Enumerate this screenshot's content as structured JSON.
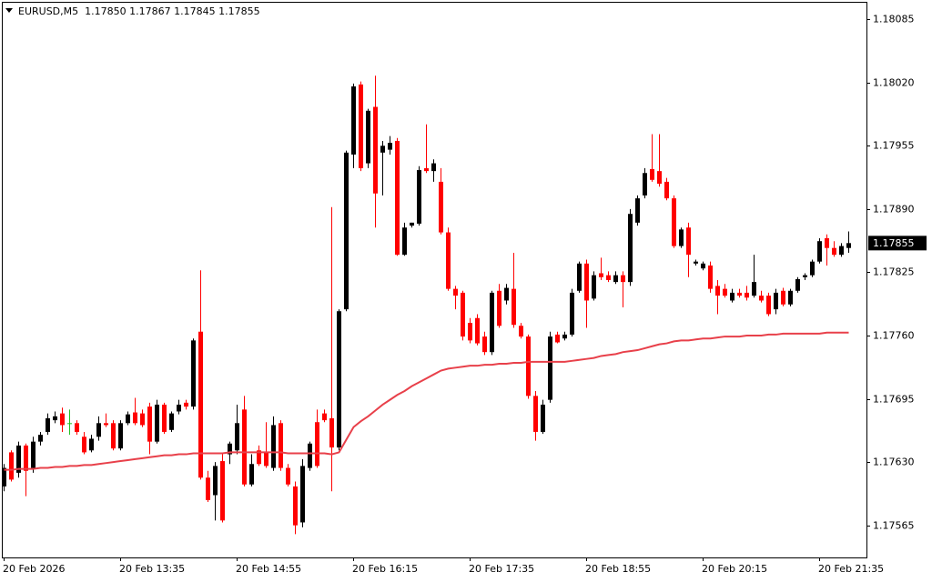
{
  "chart_data": {
    "type": "candlestick",
    "title": "EURUSD,M5  1.17850 1.17867 1.17845 1.17855",
    "categories": [
      "20 Feb 2026",
      null,
      null,
      null,
      null,
      null,
      null,
      null,
      null,
      null,
      null,
      null,
      null,
      null,
      null,
      null,
      "20 Feb 13:35",
      null,
      null,
      null,
      null,
      null,
      null,
      null,
      null,
      null,
      null,
      null,
      null,
      null,
      null,
      null,
      "20 Feb 14:55",
      null,
      null,
      null,
      null,
      null,
      null,
      null,
      null,
      null,
      null,
      null,
      null,
      null,
      null,
      null,
      "20 Feb 16:15",
      null,
      null,
      null,
      null,
      null,
      null,
      null,
      null,
      null,
      null,
      null,
      null,
      null,
      null,
      null,
      "20 Feb 17:35",
      null,
      null,
      null,
      null,
      null,
      null,
      null,
      null,
      null,
      null,
      null,
      null,
      null,
      null,
      null,
      "20 Feb 18:55",
      null,
      null,
      null,
      null,
      null,
      null,
      null,
      null,
      null,
      null,
      null,
      null,
      null,
      null,
      null,
      "20 Feb 20:15",
      null,
      null,
      null,
      null,
      null,
      null,
      null,
      null,
      null,
      null,
      null,
      null,
      null,
      null,
      null,
      "20 Feb 21:35",
      null,
      null,
      null,
      null
    ],
    "open": [
      1.17605,
      1.1764,
      1.17619,
      1.17647,
      1.17624,
      1.17651,
      1.17661,
      1.17673,
      1.1768,
      1.1767,
      1.1767,
      1.17656,
      1.17642,
      1.17656,
      1.1767,
      1.1767,
      1.17644,
      1.1767,
      1.17681,
      1.1768,
      1.17687,
      1.17651,
      1.17689,
      1.17663,
      1.17682,
      1.17691,
      1.17687,
      1.17764,
      1.17614,
      1.17596,
      1.17631,
      1.17638,
      1.17642,
      1.17684,
      1.17607,
      1.17642,
      1.1764,
      1.17624,
      1.1767,
      1.17624,
      1.17605,
      1.17568,
      1.17624,
      1.17671,
      1.1768,
      1.17675,
      1.17645,
      1.17787,
      1.17946,
      1.18018,
      1.17937,
      1.17995,
      1.17948,
      1.17951,
      1.1796,
      1.17843,
      1.17873,
      1.17875,
      1.17932,
      1.17929,
      1.17918,
      1.17866,
      1.17808,
      1.17804,
      1.17773,
      1.17778,
      1.17759,
      1.17743,
      1.17806,
      1.17796,
      1.17808,
      1.1777,
      1.17759,
      1.17698,
      1.17661,
      1.17694,
      1.17761,
      1.17757,
      1.17761,
      1.17806,
      1.17834,
      1.17798,
      1.17824,
      1.17822,
      1.17815,
      1.17822,
      1.17815,
      1.17876,
      1.17904,
      1.17931,
      1.17929,
      1.17918,
      1.17901,
      1.17852,
      1.17871,
      1.17834,
      1.17829,
      1.17832,
      1.17811,
      1.17808,
      1.17796,
      1.17804,
      1.17804,
      1.17801,
      1.17801,
      1.17801,
      1.17787,
      1.17806,
      1.17792,
      1.17806,
      1.1782,
      1.17822,
      1.17836,
      1.1786,
      1.1785,
      1.17843,
      1.1785
    ],
    "high": [
      1.17628,
      1.17642,
      1.17651,
      1.17649,
      1.17656,
      1.17661,
      1.1768,
      1.17682,
      1.17686,
      1.17684,
      1.17673,
      1.17661,
      1.17658,
      1.17677,
      1.1768,
      1.17673,
      1.17673,
      1.17682,
      1.17696,
      1.17684,
      1.17691,
      1.17694,
      1.17691,
      1.17682,
      1.17694,
      1.17694,
      1.17757,
      1.17827,
      1.17621,
      1.1763,
      1.17638,
      1.17651,
      1.17689,
      1.17698,
      1.17638,
      1.17647,
      1.17671,
      1.17677,
      1.17673,
      1.17628,
      1.1761,
      1.17633,
      1.17651,
      1.17684,
      1.17684,
      1.17892,
      1.17787,
      1.1795,
      1.18019,
      1.18021,
      1.17993,
      1.18027,
      1.1796,
      1.17965,
      1.17963,
      1.17876,
      1.17876,
      1.17934,
      1.17977,
      1.17941,
      1.17932,
      1.17871,
      1.17811,
      1.17806,
      1.17778,
      1.17782,
      1.17764,
      1.17806,
      1.17813,
      1.17813,
      1.17845,
      1.17773,
      1.17761,
      1.17703,
      1.17694,
      1.17764,
      1.17764,
      1.17764,
      1.17808,
      1.17836,
      1.17838,
      1.17826,
      1.1784,
      1.17826,
      1.17826,
      1.17826,
      1.1789,
      1.17904,
      1.17932,
      1.17967,
      1.17967,
      1.17922,
      1.17904,
      1.17871,
      1.17876,
      1.17838,
      1.17836,
      1.17836,
      1.17817,
      1.17813,
      1.17808,
      1.17808,
      1.17811,
      1.17843,
      1.17806,
      1.17804,
      1.17808,
      1.17809,
      1.17808,
      1.1782,
      1.17824,
      1.17838,
      1.1786,
      1.17864,
      1.17857,
      1.17855,
      1.17867
    ],
    "low": [
      1.176,
      1.1761,
      1.17614,
      1.17595,
      1.17619,
      1.17647,
      1.17658,
      1.1767,
      1.17661,
      1.17658,
      1.17658,
      1.17638,
      1.1764,
      1.17652,
      1.17666,
      1.17642,
      1.17642,
      1.17668,
      1.17668,
      1.17666,
      1.17638,
      1.17649,
      1.17659,
      1.17661,
      1.17679,
      1.17684,
      1.17684,
      1.17612,
      1.17589,
      1.1757,
      1.17568,
      1.17628,
      1.17638,
      1.17605,
      1.17605,
      1.17626,
      1.17624,
      1.17621,
      1.17621,
      1.17605,
      1.17556,
      1.17563,
      1.17621,
      1.17624,
      1.17671,
      1.176,
      1.17642,
      1.17785,
      1.17932,
      1.17929,
      1.17932,
      1.17871,
      1.17904,
      1.17946,
      1.17842,
      1.17842,
      1.17871,
      1.17873,
      1.17927,
      1.17918,
      1.17864,
      1.17806,
      1.17787,
      1.17755,
      1.17752,
      1.1775,
      1.1774,
      1.1774,
      1.17768,
      1.17792,
      1.17768,
      1.17757,
      1.17695,
      1.17652,
      1.17659,
      1.17691,
      1.17752,
      1.17755,
      1.17759,
      1.17804,
      1.17768,
      1.17796,
      1.17817,
      1.17815,
      1.17813,
      1.17789,
      1.17811,
      1.17873,
      1.17901,
      1.17918,
      1.17913,
      1.17899,
      1.1785,
      1.1785,
      1.1782,
      1.17832,
      1.17827,
      1.17804,
      1.17782,
      1.17799,
      1.17794,
      1.17799,
      1.17796,
      1.17799,
      1.17794,
      1.1778,
      1.17782,
      1.1779,
      1.1779,
      1.17804,
      1.17817,
      1.1782,
      1.17834,
      1.17832,
      1.17841,
      1.17841,
      1.17845
    ],
    "close": [
      1.17624,
      1.17612,
      1.17647,
      1.17621,
      1.17651,
      1.17658,
      1.17675,
      1.17677,
      1.17668,
      1.1767,
      1.17661,
      1.1764,
      1.17654,
      1.1767,
      1.17668,
      1.17644,
      1.1767,
      1.17679,
      1.1767,
      1.17668,
      1.17651,
      1.17689,
      1.17661,
      1.1768,
      1.17689,
      1.17687,
      1.17755,
      1.17614,
      1.17591,
      1.17626,
      1.1757,
      1.17649,
      1.1767,
      1.17607,
      1.17628,
      1.17628,
      1.17626,
      1.17668,
      1.17624,
      1.17607,
      1.17565,
      1.17626,
      1.17649,
      1.17626,
      1.17673,
      1.17645,
      1.17785,
      1.17948,
      1.18016,
      1.17932,
      1.17991,
      1.17906,
      1.17955,
      1.17958,
      1.17843,
      1.17871,
      1.17876,
      1.1793,
      1.17929,
      1.17937,
      1.17866,
      1.17808,
      1.17801,
      1.17759,
      1.17755,
      1.17752,
      1.17743,
      1.17804,
      1.1777,
      1.17809,
      1.17771,
      1.17759,
      1.17698,
      1.17661,
      1.17689,
      1.17759,
      1.17753,
      1.17761,
      1.17804,
      1.17834,
      1.17796,
      1.17822,
      1.1782,
      1.17817,
      1.17822,
      1.17815,
      1.17885,
      1.17901,
      1.17927,
      1.1792,
      1.17916,
      1.17901,
      1.17852,
      1.17869,
      1.17843,
      1.17836,
      1.17834,
      1.17808,
      1.17801,
      1.17801,
      1.17804,
      1.17801,
      1.17799,
      1.17815,
      1.17796,
      1.17782,
      1.17804,
      1.17792,
      1.17806,
      1.17818,
      1.17822,
      1.17836,
      1.17857,
      1.1785,
      1.17843,
      1.17852,
      1.17855
    ],
    "bull_color": "#000000",
    "bear_color": "#ff0000",
    "doji_color": "#22c022",
    "ma": {
      "color": "#e8404a",
      "values": [
        1.17622,
        1.17622,
        1.17623,
        1.17623,
        1.17623,
        1.17624,
        1.17624,
        1.17625,
        1.17625,
        1.17626,
        1.17626,
        1.17627,
        1.17627,
        1.17628,
        1.17629,
        1.1763,
        1.17631,
        1.17632,
        1.17633,
        1.17634,
        1.17635,
        1.17636,
        1.17637,
        1.17637,
        1.17638,
        1.17638,
        1.17639,
        1.17639,
        1.17639,
        1.17639,
        1.17639,
        1.1764,
        1.1764,
        1.1764,
        1.1764,
        1.1764,
        1.1764,
        1.1764,
        1.1764,
        1.17639,
        1.17639,
        1.17639,
        1.17639,
        1.17639,
        1.17639,
        1.17638,
        1.1764,
        1.17653,
        1.17666,
        1.17672,
        1.17677,
        1.17683,
        1.17689,
        1.17694,
        1.17699,
        1.17703,
        1.17708,
        1.17712,
        1.17716,
        1.1772,
        1.17724,
        1.17726,
        1.17727,
        1.17728,
        1.17729,
        1.17729,
        1.1773,
        1.1773,
        1.17731,
        1.17731,
        1.17732,
        1.17732,
        1.17733,
        1.17733,
        1.17733,
        1.17733,
        1.17733,
        1.17733,
        1.17734,
        1.17735,
        1.17736,
        1.17737,
        1.17739,
        1.1774,
        1.17741,
        1.17743,
        1.17744,
        1.17745,
        1.17747,
        1.17749,
        1.17751,
        1.17752,
        1.17754,
        1.17755,
        1.17755,
        1.17756,
        1.17757,
        1.17757,
        1.17758,
        1.17759,
        1.17759,
        1.17759,
        1.1776,
        1.1776,
        1.1776,
        1.17761,
        1.17761,
        1.17762,
        1.17762,
        1.17762,
        1.17762,
        1.17762,
        1.17762,
        1.17763,
        1.17763,
        1.17763,
        1.17763
      ]
    },
    "ylim": [
      1.17532,
      1.18102
    ],
    "yticks": [
      1.18085,
      {
        "value": 1.1802,
        "label": "1.18020"
      },
      1.17955,
      {
        "value": 1.1789,
        "label": "1.17890"
      },
      1.17825,
      {
        "value": 1.1776,
        "label": "1.17760"
      },
      1.17695,
      {
        "value": 1.1763,
        "label": "1.17630"
      },
      1.17565
    ],
    "grid": false
  }
}
